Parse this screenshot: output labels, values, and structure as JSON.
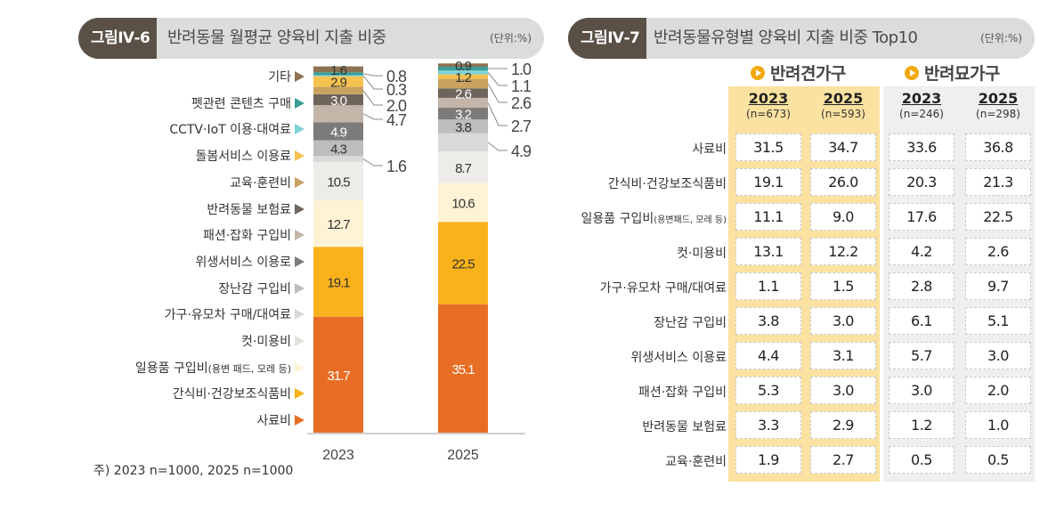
{
  "figure1": {
    "badge": "그림Ⅳ-6",
    "title": "반려동물 월평균 양육비 지출 비중",
    "unit": "(단위:%)",
    "note": "주) 2023 n=1000, 2025 n=1000"
  },
  "figure2": {
    "badge": "그림Ⅳ-7",
    "title": "반려동물유형별 양육비 지출 비중 Top10",
    "unit": "(단위:%)",
    "groups": [
      {
        "name": "반려견가구",
        "columns": [
          {
            "year": "2023",
            "n": "(n=673)"
          },
          {
            "year": "2025",
            "n": "(n=593)"
          }
        ]
      },
      {
        "name": "반려묘가구",
        "columns": [
          {
            "year": "2023",
            "n": "(n=246)"
          },
          {
            "year": "2025",
            "n": "(n=298)"
          }
        ]
      }
    ],
    "rows": [
      {
        "label": "사료비",
        "sub": "",
        "values": [
          "31.5",
          "34.7",
          "33.6",
          "36.8"
        ]
      },
      {
        "label": "간식비·건강보조식품비",
        "sub": "",
        "values": [
          "19.1",
          "26.0",
          "20.3",
          "21.3"
        ]
      },
      {
        "label": "일용품 구입비",
        "sub": "(용변패드, 모레 등)",
        "values": [
          "11.1",
          "9.0",
          "17.6",
          "22.5"
        ]
      },
      {
        "label": "컷·미용비",
        "sub": "",
        "values": [
          "13.1",
          "12.2",
          "4.2",
          "2.6"
        ]
      },
      {
        "label": "가구·유모차 구매/대여료",
        "sub": "",
        "values": [
          "1.1",
          "1.5",
          "2.8",
          "9.7"
        ]
      },
      {
        "label": "장난감 구입비",
        "sub": "",
        "values": [
          "3.8",
          "3.0",
          "6.1",
          "5.1"
        ]
      },
      {
        "label": "위생서비스 이용료",
        "sub": "",
        "values": [
          "4.4",
          "3.1",
          "5.7",
          "3.0"
        ]
      },
      {
        "label": "패션·잡화 구입비",
        "sub": "",
        "values": [
          "5.3",
          "3.0",
          "3.0",
          "2.0"
        ]
      },
      {
        "label": "반려동물 보험료",
        "sub": "",
        "values": [
          "3.3",
          "2.9",
          "1.2",
          "1.0"
        ]
      },
      {
        "label": "교육·훈련비",
        "sub": "",
        "values": [
          "1.9",
          "2.7",
          "0.5",
          "0.5"
        ]
      }
    ],
    "colors": {
      "dog_panel": "#fbe2a0",
      "cat_panel": "#efefef",
      "group_icon": "#f2a90c"
    }
  },
  "chart_data": [
    {
      "type": "bar",
      "stacked": true,
      "title": "반려동물 월평균 양육비 지출 비중",
      "unit": "%",
      "categories": [
        "2023",
        "2025"
      ],
      "ylim": [
        0,
        100
      ],
      "legend": "left",
      "series": [
        {
          "name": "기타",
          "color": "#8c7452",
          "values": [
            1.6,
            0.9
          ],
          "label_style": [
            "inside",
            "inside"
          ]
        },
        {
          "name": "펫관련 콘텐츠 구매",
          "color": "#3a9e98",
          "values": [
            0.8,
            1.0
          ],
          "label_style": [
            "callout",
            "callout"
          ]
        },
        {
          "name": "CCTV·IoT 이용·대여료",
          "color": "#7fd3d6",
          "values": [
            0.3,
            1.1
          ],
          "label_style": [
            "callout",
            "callout"
          ]
        },
        {
          "name": "돌봄서비스 이용료",
          "color": "#f6c24f",
          "values": [
            2.9,
            1.2
          ],
          "label_style": [
            "inside",
            "inside"
          ]
        },
        {
          "name": "교육·훈련비",
          "color": "#c9a160",
          "values": [
            2.0,
            2.6
          ],
          "label_style": [
            "callout",
            "callout"
          ]
        },
        {
          "name": "반려동물 보험료",
          "color": "#6e655b",
          "values": [
            3.0,
            2.6
          ],
          "label_style": [
            "inside",
            "inside"
          ]
        },
        {
          "name": "패션·잡화 구입비",
          "color": "#c3b6a9",
          "values": [
            4.7,
            2.7
          ],
          "label_style": [
            "callout",
            "callout"
          ]
        },
        {
          "name": "위생서비스 이용로",
          "color": "#7d7b79",
          "values": [
            4.9,
            3.2
          ],
          "label_style": [
            "inside",
            "inside"
          ]
        },
        {
          "name": "장난감 구입비",
          "color": "#bdbdbd",
          "values": [
            4.3,
            3.8
          ],
          "label_style": [
            "inside",
            "inside"
          ]
        },
        {
          "name": "가구·유모차 구매/대여료",
          "color": "#d9d9d9",
          "values": [
            1.6,
            4.9
          ],
          "label_style": [
            "callout",
            "callout"
          ]
        },
        {
          "name": "컷·미용비",
          "color": "#eeece9",
          "values": [
            10.5,
            8.7
          ],
          "label_style": [
            "inside",
            "inside"
          ]
        },
        {
          "name": "일용품 구입비(용변 패드, 모레 등)",
          "color": "#fff3d6",
          "values": [
            12.7,
            10.6
          ],
          "label_style": [
            "inside",
            "inside"
          ]
        },
        {
          "name": "간식비·건강보조식품비",
          "color": "#f9b21b",
          "values": [
            19.1,
            22.5
          ],
          "label_style": [
            "inside",
            "inside"
          ]
        },
        {
          "name": "사료비",
          "color": "#e86d25",
          "values": [
            31.7,
            35.1
          ],
          "label_style": [
            "inside",
            "inside"
          ]
        }
      ]
    }
  ]
}
